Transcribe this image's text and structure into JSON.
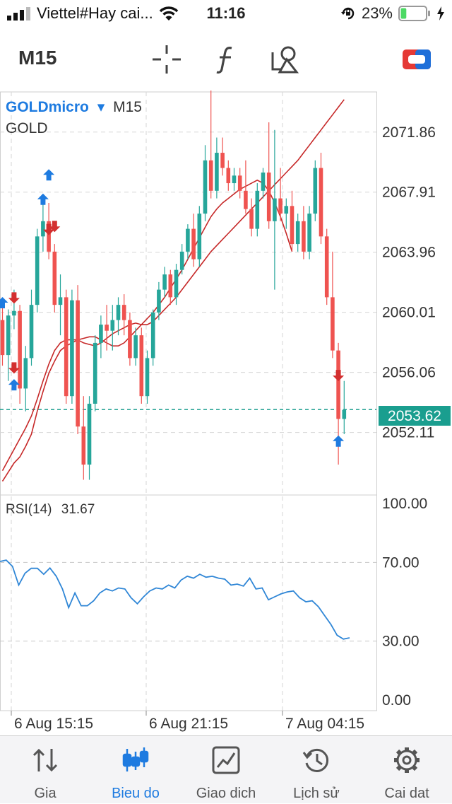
{
  "status_bar": {
    "carrier": "Viettel#Hay cai...",
    "time": "11:16",
    "battery": "23%",
    "colors": {
      "battery_fill": "#4cd964"
    }
  },
  "toolbar": {
    "timeframe": "M15",
    "icons": [
      "crosshair-icon",
      "function-icon",
      "objects-icon",
      "trade-toggle-icon"
    ]
  },
  "chart": {
    "symbol": "GOLDmicro",
    "symbol_caret": "▾",
    "period": "M15",
    "description": "GOLD",
    "current_price": "2053.62",
    "colors": {
      "bull": "#26a69a",
      "bear": "#ef5350",
      "ma": "#c62828",
      "rsi": "#2f86d6",
      "price_line": "#1a9e8f",
      "buy_arrow": "#1e7be0",
      "sell_arrow": "#d32f2f"
    }
  },
  "chart_data": [
    {
      "type": "candlestick",
      "price_axis_labels": [
        "2071.86",
        "2067.91",
        "2063.96",
        "2060.01",
        "2056.06",
        "2052.11"
      ],
      "time_axis_labels": [
        "6 Aug 15:15",
        "6 Aug 21:15",
        "7 Aug 04:15"
      ],
      "ylim": [
        2048.0,
        2074.5
      ],
      "current_price": 2053.62,
      "candles": [
        [
          2059.5,
          2060.8,
          2056.5,
          2057.2
        ],
        [
          2057.2,
          2060.2,
          2055.5,
          2059.8
        ],
        [
          2059.8,
          2061.5,
          2058.9,
          2060.1
        ],
        [
          2060.1,
          2060.5,
          2054.0,
          2055.0
        ],
        [
          2055.0,
          2057.8,
          2053.5,
          2057.0
        ],
        [
          2057.0,
          2061.5,
          2056.5,
          2060.5
        ],
        [
          2060.5,
          2065.5,
          2060.0,
          2065.0
        ],
        [
          2065.0,
          2067.8,
          2064.0,
          2066.0
        ],
        [
          2066.0,
          2067.2,
          2063.5,
          2064.0
        ],
        [
          2064.0,
          2064.5,
          2060.0,
          2060.5
        ],
        [
          2060.5,
          2062.5,
          2058.5,
          2061.0
        ],
        [
          2061.0,
          2061.5,
          2054.0,
          2054.5
        ],
        [
          2054.5,
          2061.5,
          2054.0,
          2060.8
        ],
        [
          2060.8,
          2061.8,
          2052.0,
          2052.5
        ],
        [
          2052.5,
          2054.5,
          2049.0,
          2050.0
        ],
        [
          2050.0,
          2054.5,
          2049.0,
          2054.0
        ],
        [
          2054.0,
          2058.5,
          2053.5,
          2058.0
        ],
        [
          2058.0,
          2059.8,
          2057.0,
          2059.2
        ],
        [
          2059.2,
          2060.5,
          2057.5,
          2058.8
        ],
        [
          2058.8,
          2060.5,
          2057.5,
          2059.5
        ],
        [
          2059.5,
          2061.0,
          2058.5,
          2060.5
        ],
        [
          2060.5,
          2061.2,
          2058.5,
          2059.5
        ],
        [
          2059.5,
          2060.0,
          2056.5,
          2057.0
        ],
        [
          2057.0,
          2059.0,
          2056.5,
          2058.5
        ],
        [
          2058.5,
          2059.0,
          2054.0,
          2054.5
        ],
        [
          2054.5,
          2057.5,
          2054.0,
          2057.0
        ],
        [
          2057.0,
          2060.2,
          2056.5,
          2060.0
        ],
        [
          2060.0,
          2062.0,
          2059.5,
          2061.5
        ],
        [
          2061.5,
          2063.0,
          2061.0,
          2062.5
        ],
        [
          2062.5,
          2062.8,
          2060.5,
          2061.0
        ],
        [
          2061.0,
          2063.2,
          2060.5,
          2062.8
        ],
        [
          2062.8,
          2064.5,
          2062.5,
          2064.0
        ],
        [
          2064.0,
          2065.8,
          2063.5,
          2065.5
        ],
        [
          2065.5,
          2066.5,
          2063.0,
          2063.5
        ],
        [
          2063.5,
          2067.0,
          2063.0,
          2066.5
        ],
        [
          2066.5,
          2071.0,
          2066.0,
          2070.0
        ],
        [
          2070.0,
          2075.0,
          2067.5,
          2068.0
        ],
        [
          2068.0,
          2071.5,
          2067.5,
          2070.5
        ],
        [
          2070.5,
          2071.5,
          2069.0,
          2069.5
        ],
        [
          2069.5,
          2070.0,
          2068.0,
          2068.5
        ],
        [
          2068.5,
          2069.5,
          2068.0,
          2069.0
        ],
        [
          2069.0,
          2069.5,
          2067.5,
          2068.0
        ],
        [
          2068.0,
          2070.0,
          2066.5,
          2066.8
        ],
        [
          2066.8,
          2067.5,
          2065.0,
          2065.5
        ],
        [
          2065.5,
          2068.5,
          2065.0,
          2068.0
        ],
        [
          2068.0,
          2069.5,
          2067.5,
          2069.2
        ],
        [
          2069.2,
          2072.5,
          2065.5,
          2066.0
        ],
        [
          2066.0,
          2072.0,
          2061.5,
          2067.5
        ],
        [
          2067.5,
          2069.5,
          2066.0,
          2066.5
        ],
        [
          2066.5,
          2067.5,
          2065.5,
          2067.0
        ],
        [
          2067.0,
          2068.0,
          2064.0,
          2064.5
        ],
        [
          2064.5,
          2066.5,
          2064.0,
          2066.0
        ],
        [
          2066.0,
          2067.0,
          2063.5,
          2064.0
        ],
        [
          2064.0,
          2067.0,
          2063.5,
          2066.5
        ],
        [
          2066.5,
          2070.0,
          2066.0,
          2069.5
        ],
        [
          2069.5,
          2070.5,
          2064.5,
          2065.0
        ],
        [
          2065.0,
          2065.5,
          2060.5,
          2061.0
        ],
        [
          2061.0,
          2064.0,
          2057.0,
          2057.5
        ],
        [
          2057.5,
          2058.0,
          2050.0,
          2053.0
        ],
        [
          2053.0,
          2055.5,
          2052.0,
          2053.6
        ]
      ],
      "moving_averages": {
        "fast": [
          2048.9,
          2049.5,
          2050.1,
          2050.5,
          2051.2,
          2052.0,
          2053.5,
          2054.8,
          2056.0,
          2056.8,
          2057.5,
          2057.8,
          2058.0,
          2058.2,
          2058.0,
          2057.9,
          2057.8,
          2058.0,
          2058.3,
          2058.6,
          2058.8,
          2059.0,
          2059.2,
          2059.3,
          2059.2,
          2059.2,
          2059.4,
          2059.8,
          2060.2,
          2060.6,
          2061.0,
          2061.5,
          2062.0,
          2062.5,
          2063.0,
          2063.5,
          2064.0,
          2064.4,
          2064.8,
          2065.2,
          2065.6,
          2066.0,
          2066.4,
          2066.8,
          2067.2,
          2067.6,
          2068.0,
          2068.4,
          2068.8,
          2069.2,
          2069.6,
          2070.0,
          2070.5,
          2071.0,
          2071.5,
          2072.0,
          2072.5,
          2073.0,
          2073.5,
          2074.0
        ],
        "slow": [
          2049.6,
          2050.3,
          2051.0,
          2051.7,
          2052.4,
          2053.2,
          2054.3,
          2055.5,
          2056.6,
          2057.5,
          2058.0,
          2058.2,
          2058.2,
          2058.2,
          2058.3,
          2058.4,
          2058.4,
          2058.2,
          2058.0,
          2057.8,
          2057.8,
          2058.0,
          2058.4,
          2058.8,
          2059.2,
          2059.6,
          2060.0,
          2060.5,
          2061.0,
          2061.6,
          2062.2,
          2062.8,
          2063.5,
          2064.2,
          2064.9,
          2065.6,
          2066.3,
          2066.8,
          2067.2,
          2067.5,
          2067.8,
          2068.1,
          2068.3,
          2068.5,
          2068.7,
          2068.5,
          2068.0,
          2067.2,
          2066.3,
          2065.2,
          2064.0
        ]
      },
      "trade_marks": [
        {
          "candle": 0,
          "price": 2060.6,
          "type": "buy"
        },
        {
          "candle": 2,
          "price": 2061.0,
          "type": "sell"
        },
        {
          "candle": 2,
          "price": 2056.4,
          "type": "sell"
        },
        {
          "candle": 2,
          "price": 2055.2,
          "type": "buy"
        },
        {
          "candle": 7,
          "price": 2067.4,
          "type": "buy"
        },
        {
          "candle": 8,
          "price": 2069.0,
          "type": "buy"
        },
        {
          "candle": 8,
          "price": 2065.5,
          "type": "sell"
        },
        {
          "candle": 9,
          "price": 2065.7,
          "type": "sell"
        },
        {
          "candle": 58,
          "price": 2055.9,
          "type": "sell"
        },
        {
          "candle": 58,
          "price": 2051.5,
          "type": "buy"
        }
      ]
    },
    {
      "type": "line",
      "indicator_label": "RSI(14)",
      "indicator_value": "31.67",
      "ylim": [
        0,
        100
      ],
      "y_axis_labels": [
        "100.00",
        "70.00",
        "30.00",
        "0.00"
      ],
      "levels": [
        70,
        30
      ],
      "values": [
        70.5,
        71.2,
        68.0,
        58.5,
        64.5,
        67.0,
        67.0,
        64.0,
        67.2,
        63.0,
        56.5,
        47.0,
        54.5,
        48.0,
        48.0,
        50.5,
        54.5,
        56.5,
        55.5,
        57.0,
        56.5,
        52.0,
        49.0,
        52.5,
        55.5,
        57.0,
        56.5,
        58.5,
        57.0,
        61.0,
        63.0,
        62.0,
        64.0,
        62.5,
        63.0,
        62.0,
        61.5,
        58.5,
        59.0,
        58.0,
        62.0,
        56.5,
        57.0,
        51.0,
        52.5,
        54.0,
        55.0,
        55.5,
        52.0,
        50.0,
        50.5,
        47.5,
        43.0,
        38.5,
        33.0,
        31.0,
        31.67
      ]
    }
  ],
  "tab_bar": {
    "tabs": [
      {
        "label": "Gia",
        "icon": "quotes-icon"
      },
      {
        "label": "Bieu do",
        "icon": "chart-candles-icon",
        "active": true
      },
      {
        "label": "Giao dich",
        "icon": "trade-icon"
      },
      {
        "label": "Lịch sử",
        "icon": "history-icon"
      },
      {
        "label": "Cai dat",
        "icon": "settings-icon"
      }
    ]
  }
}
